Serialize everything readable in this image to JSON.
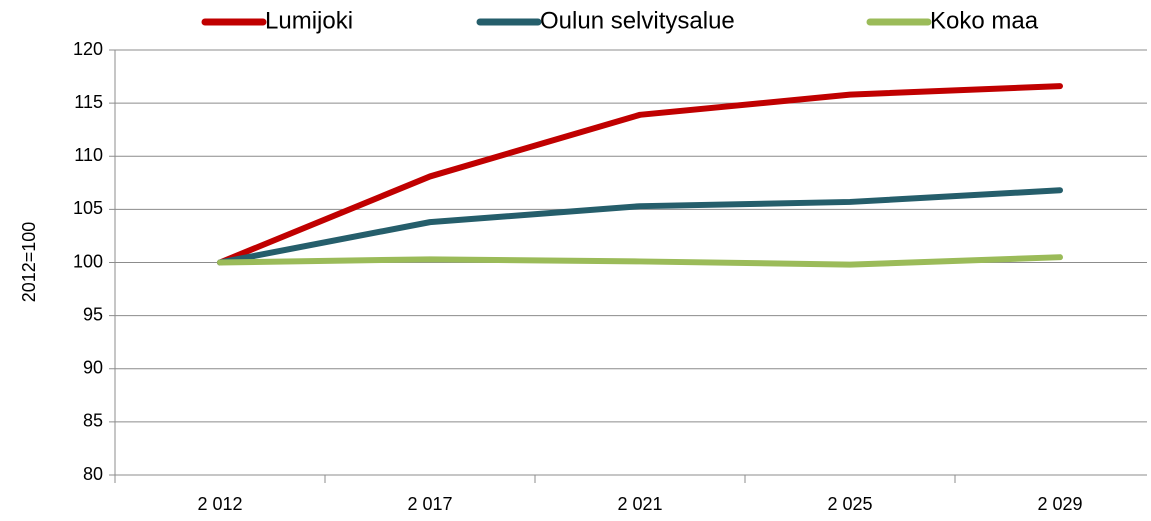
{
  "chart_data": {
    "type": "line",
    "y_label": "2012=100",
    "categories": [
      "2 012",
      "2 017",
      "2 021",
      "2 025",
      "2 029"
    ],
    "series": [
      {
        "name": "Lumijoki",
        "color": "#c00000",
        "values": [
          100,
          108.1,
          113.9,
          115.8,
          116.6
        ]
      },
      {
        "name": "Oulun selvitysalue",
        "color": "#255e6b",
        "values": [
          100,
          103.8,
          105.3,
          105.7,
          106.8
        ]
      },
      {
        "name": "Koko maa",
        "color": "#9bbb59",
        "values": [
          100,
          100.3,
          100.1,
          99.8,
          100.5
        ]
      }
    ],
    "ylim": [
      80,
      120
    ],
    "yticks": [
      80,
      85,
      90,
      95,
      100,
      105,
      110,
      115,
      120
    ],
    "grid": true,
    "legend": "top"
  }
}
